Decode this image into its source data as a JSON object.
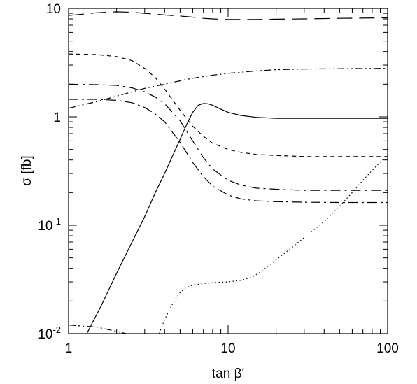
{
  "chart_data": {
    "type": "line",
    "xlabel": "tan β'",
    "ylabel": "σ [fb]",
    "xscale": "log",
    "yscale": "log",
    "xlim": [
      1,
      100
    ],
    "ylim": [
      0.01,
      10
    ],
    "grid": false,
    "legend": "none",
    "x_ticks": [
      "1",
      "10",
      "100"
    ],
    "y_ticks": [
      {
        "base": "10",
        "exp": "-2"
      },
      {
        "base": "10",
        "exp": "-1"
      },
      {
        "base": "1",
        "exp": ""
      },
      {
        "base": "10",
        "exp": ""
      }
    ],
    "series": [
      {
        "style": "solid",
        "x": [
          1.3,
          1.6,
          2,
          2.5,
          3,
          3.5,
          4,
          4.5,
          5,
          5.5,
          6,
          6.5,
          7,
          7.5,
          8,
          9,
          10,
          12,
          15,
          20,
          30,
          50,
          100
        ],
        "y": [
          0.01,
          0.018,
          0.036,
          0.07,
          0.12,
          0.2,
          0.3,
          0.44,
          0.62,
          0.85,
          1.1,
          1.28,
          1.33,
          1.32,
          1.28,
          1.18,
          1.1,
          1.03,
          0.99,
          0.97,
          0.97,
          0.97,
          0.97
        ]
      },
      {
        "style": "short-dash",
        "x": [
          1,
          1.5,
          2,
          2.5,
          3,
          3.5,
          4,
          5,
          6,
          7,
          8,
          10,
          12,
          15,
          20,
          30,
          50,
          100
        ],
        "y": [
          3.8,
          3.75,
          3.6,
          3.3,
          2.8,
          2.3,
          1.8,
          1.15,
          0.82,
          0.66,
          0.57,
          0.5,
          0.47,
          0.45,
          0.44,
          0.43,
          0.43,
          0.43
        ]
      },
      {
        "style": "long-dash",
        "x": [
          1,
          1.5,
          2,
          2.5,
          3,
          4,
          5,
          6,
          7,
          8,
          10,
          12,
          15,
          20,
          30,
          50,
          100
        ],
        "y": [
          8.6,
          9.1,
          9.3,
          9.2,
          9.0,
          8.7,
          8.5,
          8.3,
          8.1,
          8.0,
          7.9,
          7.9,
          7.9,
          7.95,
          8.0,
          8.1,
          8.2
        ]
      },
      {
        "style": "dash-dot",
        "x": [
          1,
          1.5,
          2,
          2.5,
          3,
          3.5,
          4,
          5,
          6,
          7,
          8,
          10,
          12,
          15,
          20,
          30,
          50,
          100
        ],
        "y": [
          2.0,
          1.98,
          1.95,
          1.85,
          1.7,
          1.52,
          1.32,
          0.92,
          0.6,
          0.42,
          0.33,
          0.26,
          0.235,
          0.22,
          0.215,
          0.21,
          0.21,
          0.21
        ]
      },
      {
        "style": "long-dash-dot",
        "x": [
          1,
          1.5,
          2,
          2.5,
          3,
          3.5,
          4,
          5,
          6,
          7,
          8,
          10,
          12,
          15,
          20,
          30,
          50,
          100
        ],
        "y": [
          1.45,
          1.45,
          1.42,
          1.35,
          1.22,
          1.06,
          0.9,
          0.58,
          0.38,
          0.28,
          0.23,
          0.19,
          0.175,
          0.168,
          0.165,
          0.163,
          0.162,
          0.162
        ]
      },
      {
        "style": "dash-dot-dot",
        "x": [
          1,
          1.5,
          2,
          2.5,
          3,
          4,
          5,
          6,
          8,
          10,
          15,
          20,
          30,
          50,
          100
        ],
        "y": [
          1.2,
          1.38,
          1.55,
          1.7,
          1.83,
          2.0,
          2.15,
          2.27,
          2.42,
          2.52,
          2.65,
          2.72,
          2.76,
          2.78,
          2.8
        ]
      },
      {
        "style": "dash-dot-tail",
        "x": [
          1,
          1.5,
          2,
          2.3
        ],
        "y": [
          0.012,
          0.0115,
          0.0105,
          0.01
        ]
      },
      {
        "style": "dotted",
        "x": [
          3.7,
          4,
          4.5,
          5,
          5.5,
          6,
          7,
          8,
          10,
          12,
          14,
          16,
          20,
          25,
          30,
          40,
          50,
          60,
          70,
          80,
          100
        ],
        "y": [
          0.01,
          0.0135,
          0.019,
          0.024,
          0.027,
          0.028,
          0.029,
          0.0295,
          0.03,
          0.031,
          0.033,
          0.037,
          0.048,
          0.062,
          0.077,
          0.108,
          0.15,
          0.2,
          0.26,
          0.32,
          0.45
        ]
      }
    ]
  }
}
